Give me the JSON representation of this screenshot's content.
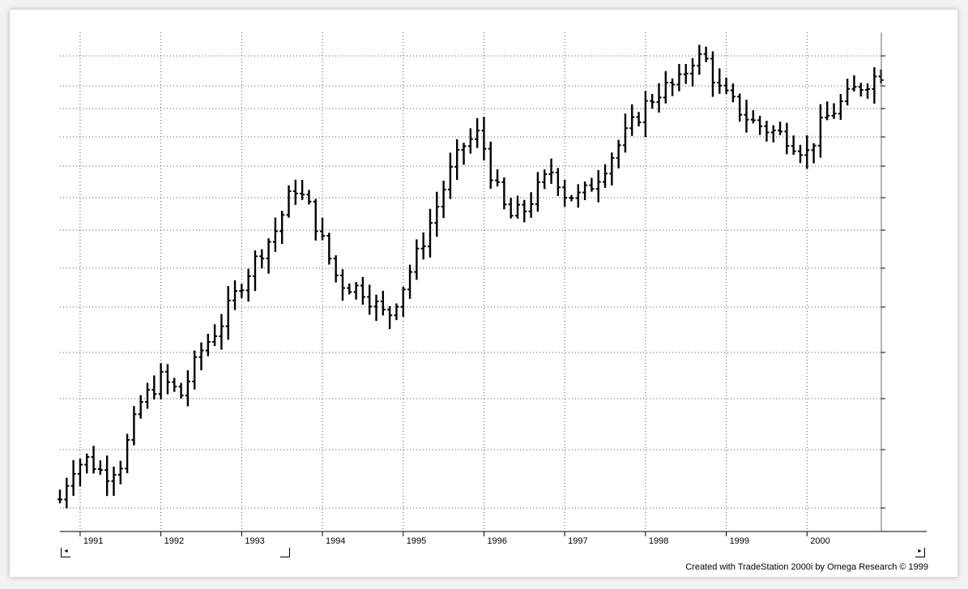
{
  "chart_data": {
    "type": "ohlc",
    "title": "",
    "xlabel": "",
    "ylabel": "",
    "x_tick_labels": [
      "1991",
      "1992",
      "1993",
      "1994",
      "1995",
      "1996",
      "1997",
      "1998",
      "1999",
      "2000"
    ],
    "bar_interval": "monthly",
    "x_range": [
      1990.75,
      2000.92
    ],
    "y_range": [
      0,
      62
    ],
    "grid": true,
    "y_tick_labels_visible": false,
    "anchors": [
      [
        1990.75,
        4
      ],
      [
        1990.9,
        8
      ],
      [
        1991.1,
        9
      ],
      [
        1991.3,
        7
      ],
      [
        1991.5,
        8.5
      ],
      [
        1991.75,
        16
      ],
      [
        1992.0,
        19
      ],
      [
        1992.25,
        17
      ],
      [
        1992.5,
        22.5
      ],
      [
        1992.75,
        26
      ],
      [
        1993.0,
        31
      ],
      [
        1993.25,
        35
      ],
      [
        1993.4,
        37
      ],
      [
        1993.65,
        43
      ],
      [
        1993.85,
        40
      ],
      [
        1994.0,
        36
      ],
      [
        1994.2,
        31
      ],
      [
        1994.5,
        30
      ],
      [
        1994.8,
        26.5
      ],
      [
        1995.0,
        30.5
      ],
      [
        1995.2,
        35
      ],
      [
        1995.4,
        40
      ],
      [
        1995.55,
        44
      ],
      [
        1995.75,
        48
      ],
      [
        1995.95,
        49.5
      ],
      [
        1996.1,
        44
      ],
      [
        1996.3,
        39
      ],
      [
        1996.5,
        40
      ],
      [
        1996.7,
        43
      ],
      [
        1996.85,
        45
      ],
      [
        1997.0,
        42
      ],
      [
        1997.2,
        41.5
      ],
      [
        1997.4,
        44
      ],
      [
        1997.6,
        47
      ],
      [
        1997.8,
        50
      ],
      [
        1998.0,
        53
      ],
      [
        1998.2,
        55
      ],
      [
        1998.4,
        55.5
      ],
      [
        1998.6,
        59
      ],
      [
        1998.75,
        58.5
      ],
      [
        1998.9,
        55
      ],
      [
        1999.1,
        53
      ],
      [
        1999.3,
        51
      ],
      [
        1999.5,
        50
      ],
      [
        1999.75,
        49
      ],
      [
        2000.0,
        47
      ],
      [
        2000.2,
        51
      ],
      [
        2000.4,
        53
      ],
      [
        2000.6,
        55
      ],
      [
        2000.92,
        57
      ]
    ]
  },
  "credit": "Created with TradeStation 2000i by Omega Research © 1999",
  "controls": {
    "scroll_left_label": "◄",
    "scroll_right_label": "►"
  }
}
